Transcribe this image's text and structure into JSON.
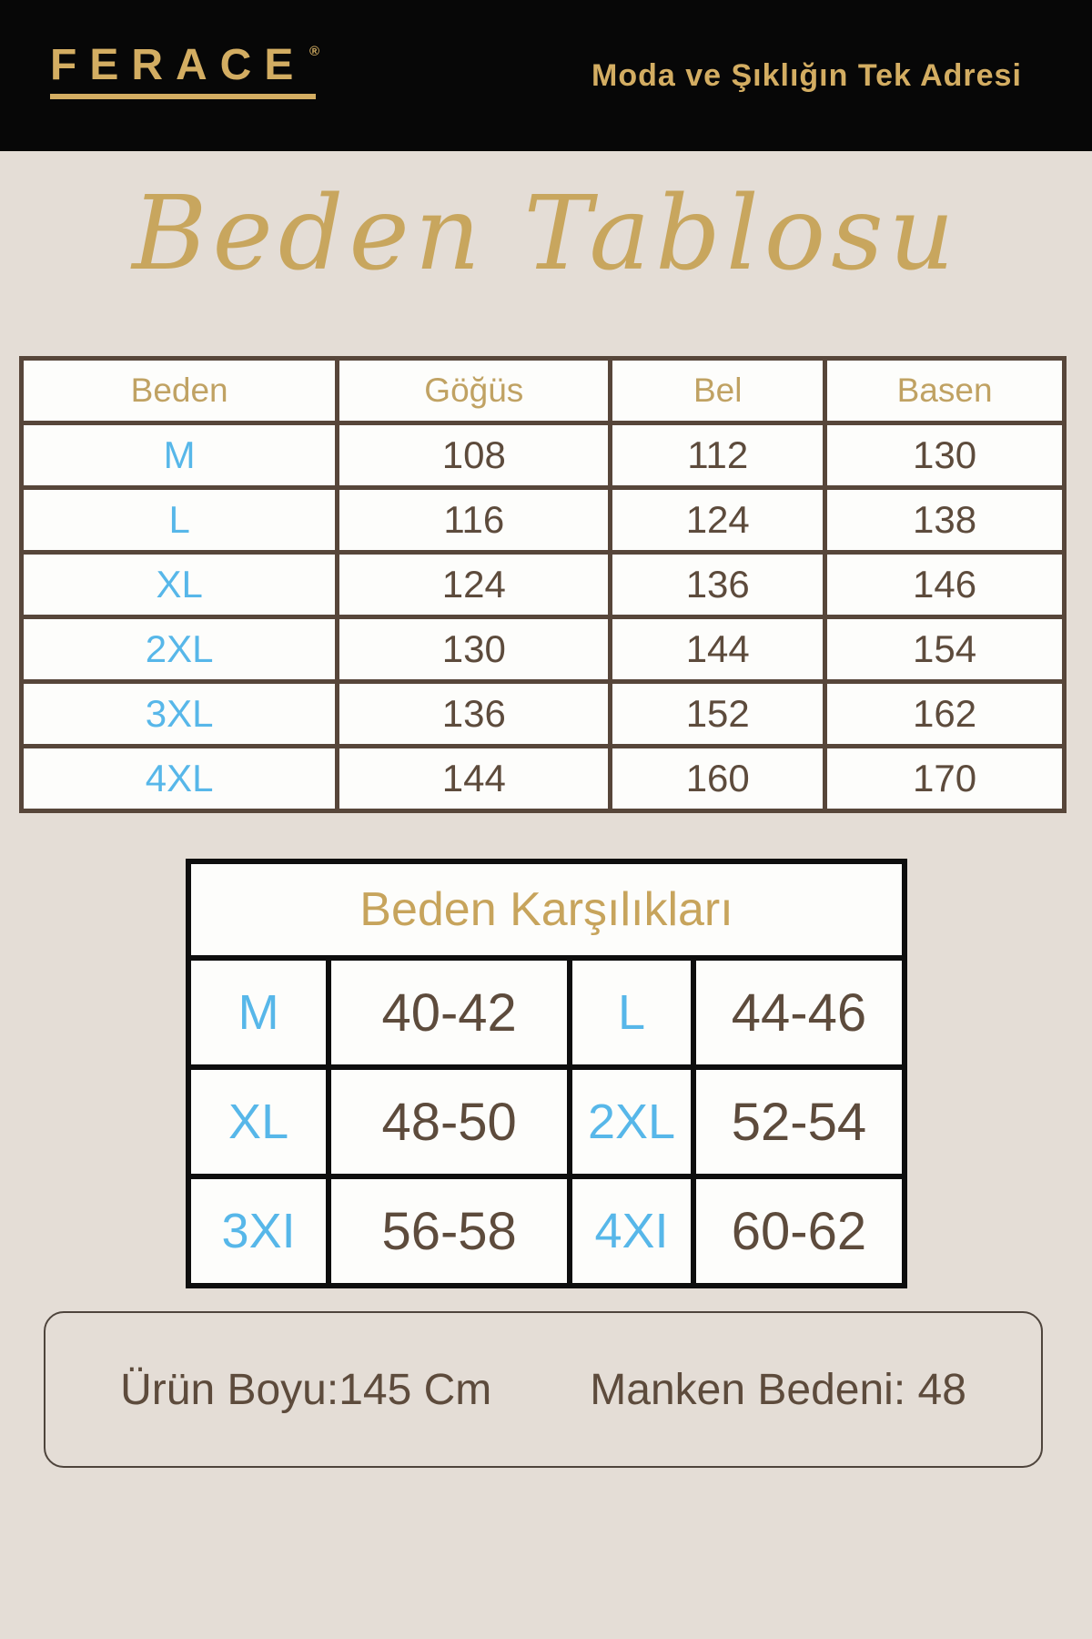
{
  "header": {
    "brand": "FERACE",
    "registered_mark": "®",
    "tagline": "Moda ve Şıklığın Tek Adresi"
  },
  "page_title": "Beden Tablosu",
  "size_table": {
    "columns": [
      "Beden",
      "Göğüs",
      "Bel",
      "Basen"
    ],
    "rows": [
      {
        "size": "M",
        "gogus": "108",
        "bel": "112",
        "basen": "130"
      },
      {
        "size": "L",
        "gogus": "116",
        "bel": "124",
        "basen": "138"
      },
      {
        "size": "XL",
        "gogus": "124",
        "bel": "136",
        "basen": "146"
      },
      {
        "size": "2XL",
        "gogus": "130",
        "bel": "144",
        "basen": "154"
      },
      {
        "size": "3XL",
        "gogus": "136",
        "bel": "152",
        "basen": "162"
      },
      {
        "size": "4XL",
        "gogus": "144",
        "bel": "160",
        "basen": "170"
      }
    ]
  },
  "equivalence_table": {
    "title": "Beden Karşılıkları",
    "rows": [
      {
        "size1": "M",
        "range1": "40-42",
        "size2": "L",
        "range2": "44-46"
      },
      {
        "size1": "XL",
        "range1": "48-50",
        "size2": "2XL",
        "range2": "52-54"
      },
      {
        "size1": "3XI",
        "range1": "56-58",
        "size2": "4XI",
        "range2": "60-62"
      }
    ]
  },
  "footer": {
    "product_length": "Ürün Boyu:145 Cm",
    "model_size": "Manken Bedeni: 48"
  },
  "colors": {
    "background": "#e4ddd6",
    "header_background": "#070707",
    "gold": "#d3ad62",
    "table_gold": "#c0a263",
    "blue": "#57b7e9",
    "brown": "#5d4b3c",
    "table1_border": "#57463a",
    "table2_border": "#0e0e0e"
  }
}
